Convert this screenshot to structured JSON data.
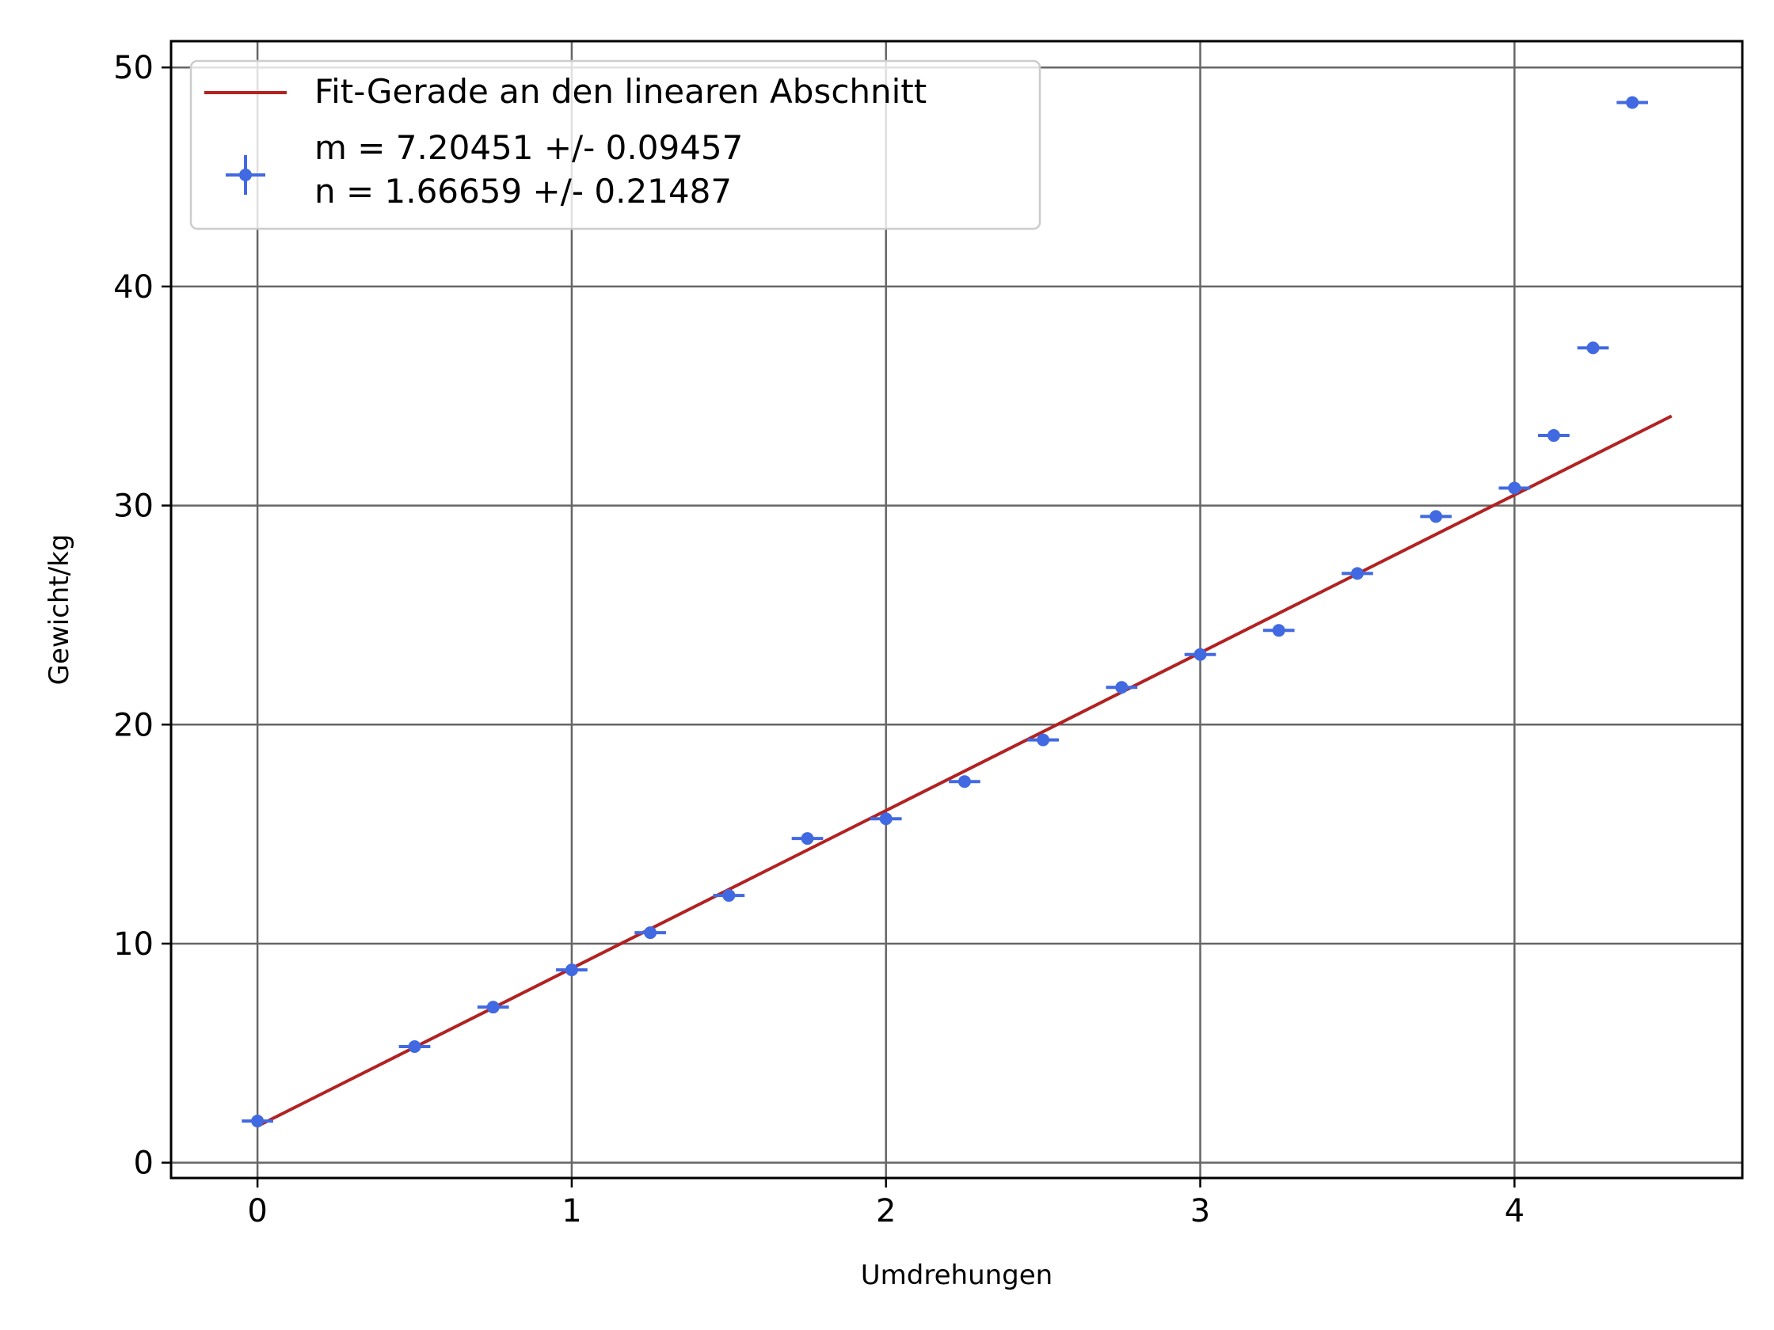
{
  "chart_data": {
    "type": "scatter",
    "xlabel": "Umdrehungen",
    "ylabel": "Gewicht/kg",
    "xlim": [
      -0.275,
      4.725
    ],
    "ylim": [
      -0.7,
      51.2
    ],
    "xticks": [
      0,
      1,
      2,
      3,
      4
    ],
    "yticks": [
      0,
      10,
      20,
      30,
      40,
      50
    ],
    "grid": true,
    "legend_position": "top-left",
    "colors": {
      "fit": "#b22222",
      "points": "#4169e1",
      "grid": "#666666"
    },
    "fit_line": {
      "label": "Fit-Gerade an den linearen Abschnitt",
      "m": 7.20451,
      "n": 1.66659,
      "x_range": [
        0,
        4.5
      ]
    },
    "points": {
      "label_line1": "m = 7.20451 +/- 0.09457",
      "label_line2": "n = 1.66659 +/- 0.21487",
      "x_err": 0.05,
      "y_err": 0.1,
      "x": [
        0,
        0.5,
        0.75,
        1,
        1.25,
        1.5,
        1.75,
        2,
        2.25,
        2.5,
        2.75,
        3,
        3.25,
        3.5,
        3.75,
        4,
        4.125,
        4.25,
        4.375
      ],
      "y": [
        1.9,
        5.3,
        7.1,
        8.8,
        10.5,
        12.2,
        14.8,
        15.7,
        17.4,
        19.3,
        21.7,
        23.2,
        24.3,
        26.9,
        29.5,
        30.8,
        33.2,
        37.2,
        48.4
      ]
    }
  }
}
